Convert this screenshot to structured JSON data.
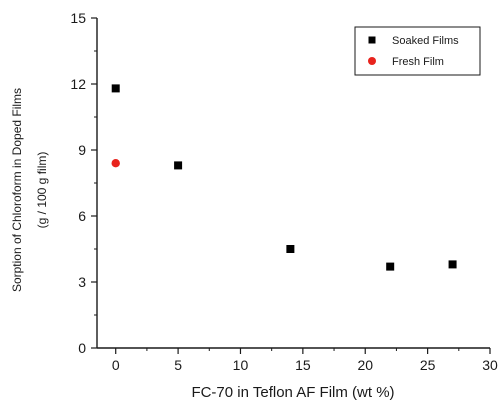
{
  "chart_data": {
    "type": "scatter",
    "xlabel": "FC-70 in Teflon AF Film (wt %)",
    "ylabel_line1": "Sorption of Chloroform in Doped Films",
    "ylabel_line2": "(g / 100 g film)",
    "xlim": [
      -1.5,
      30
    ],
    "ylim": [
      0,
      15
    ],
    "xticks": [
      0,
      5,
      10,
      15,
      20,
      25,
      30
    ],
    "yticks": [
      0,
      3,
      6,
      9,
      12,
      15
    ],
    "grid": false,
    "legend_position": "top-right",
    "series": [
      {
        "name": "Soaked Films",
        "marker": "square",
        "color": "#000000",
        "x": [
          0,
          5,
          14,
          22,
          27
        ],
        "y": [
          11.8,
          8.3,
          4.5,
          3.7,
          3.8
        ]
      },
      {
        "name": "Fresh Film",
        "marker": "circle",
        "color": "#e8231d",
        "x": [
          0
        ],
        "y": [
          8.4
        ]
      }
    ]
  }
}
